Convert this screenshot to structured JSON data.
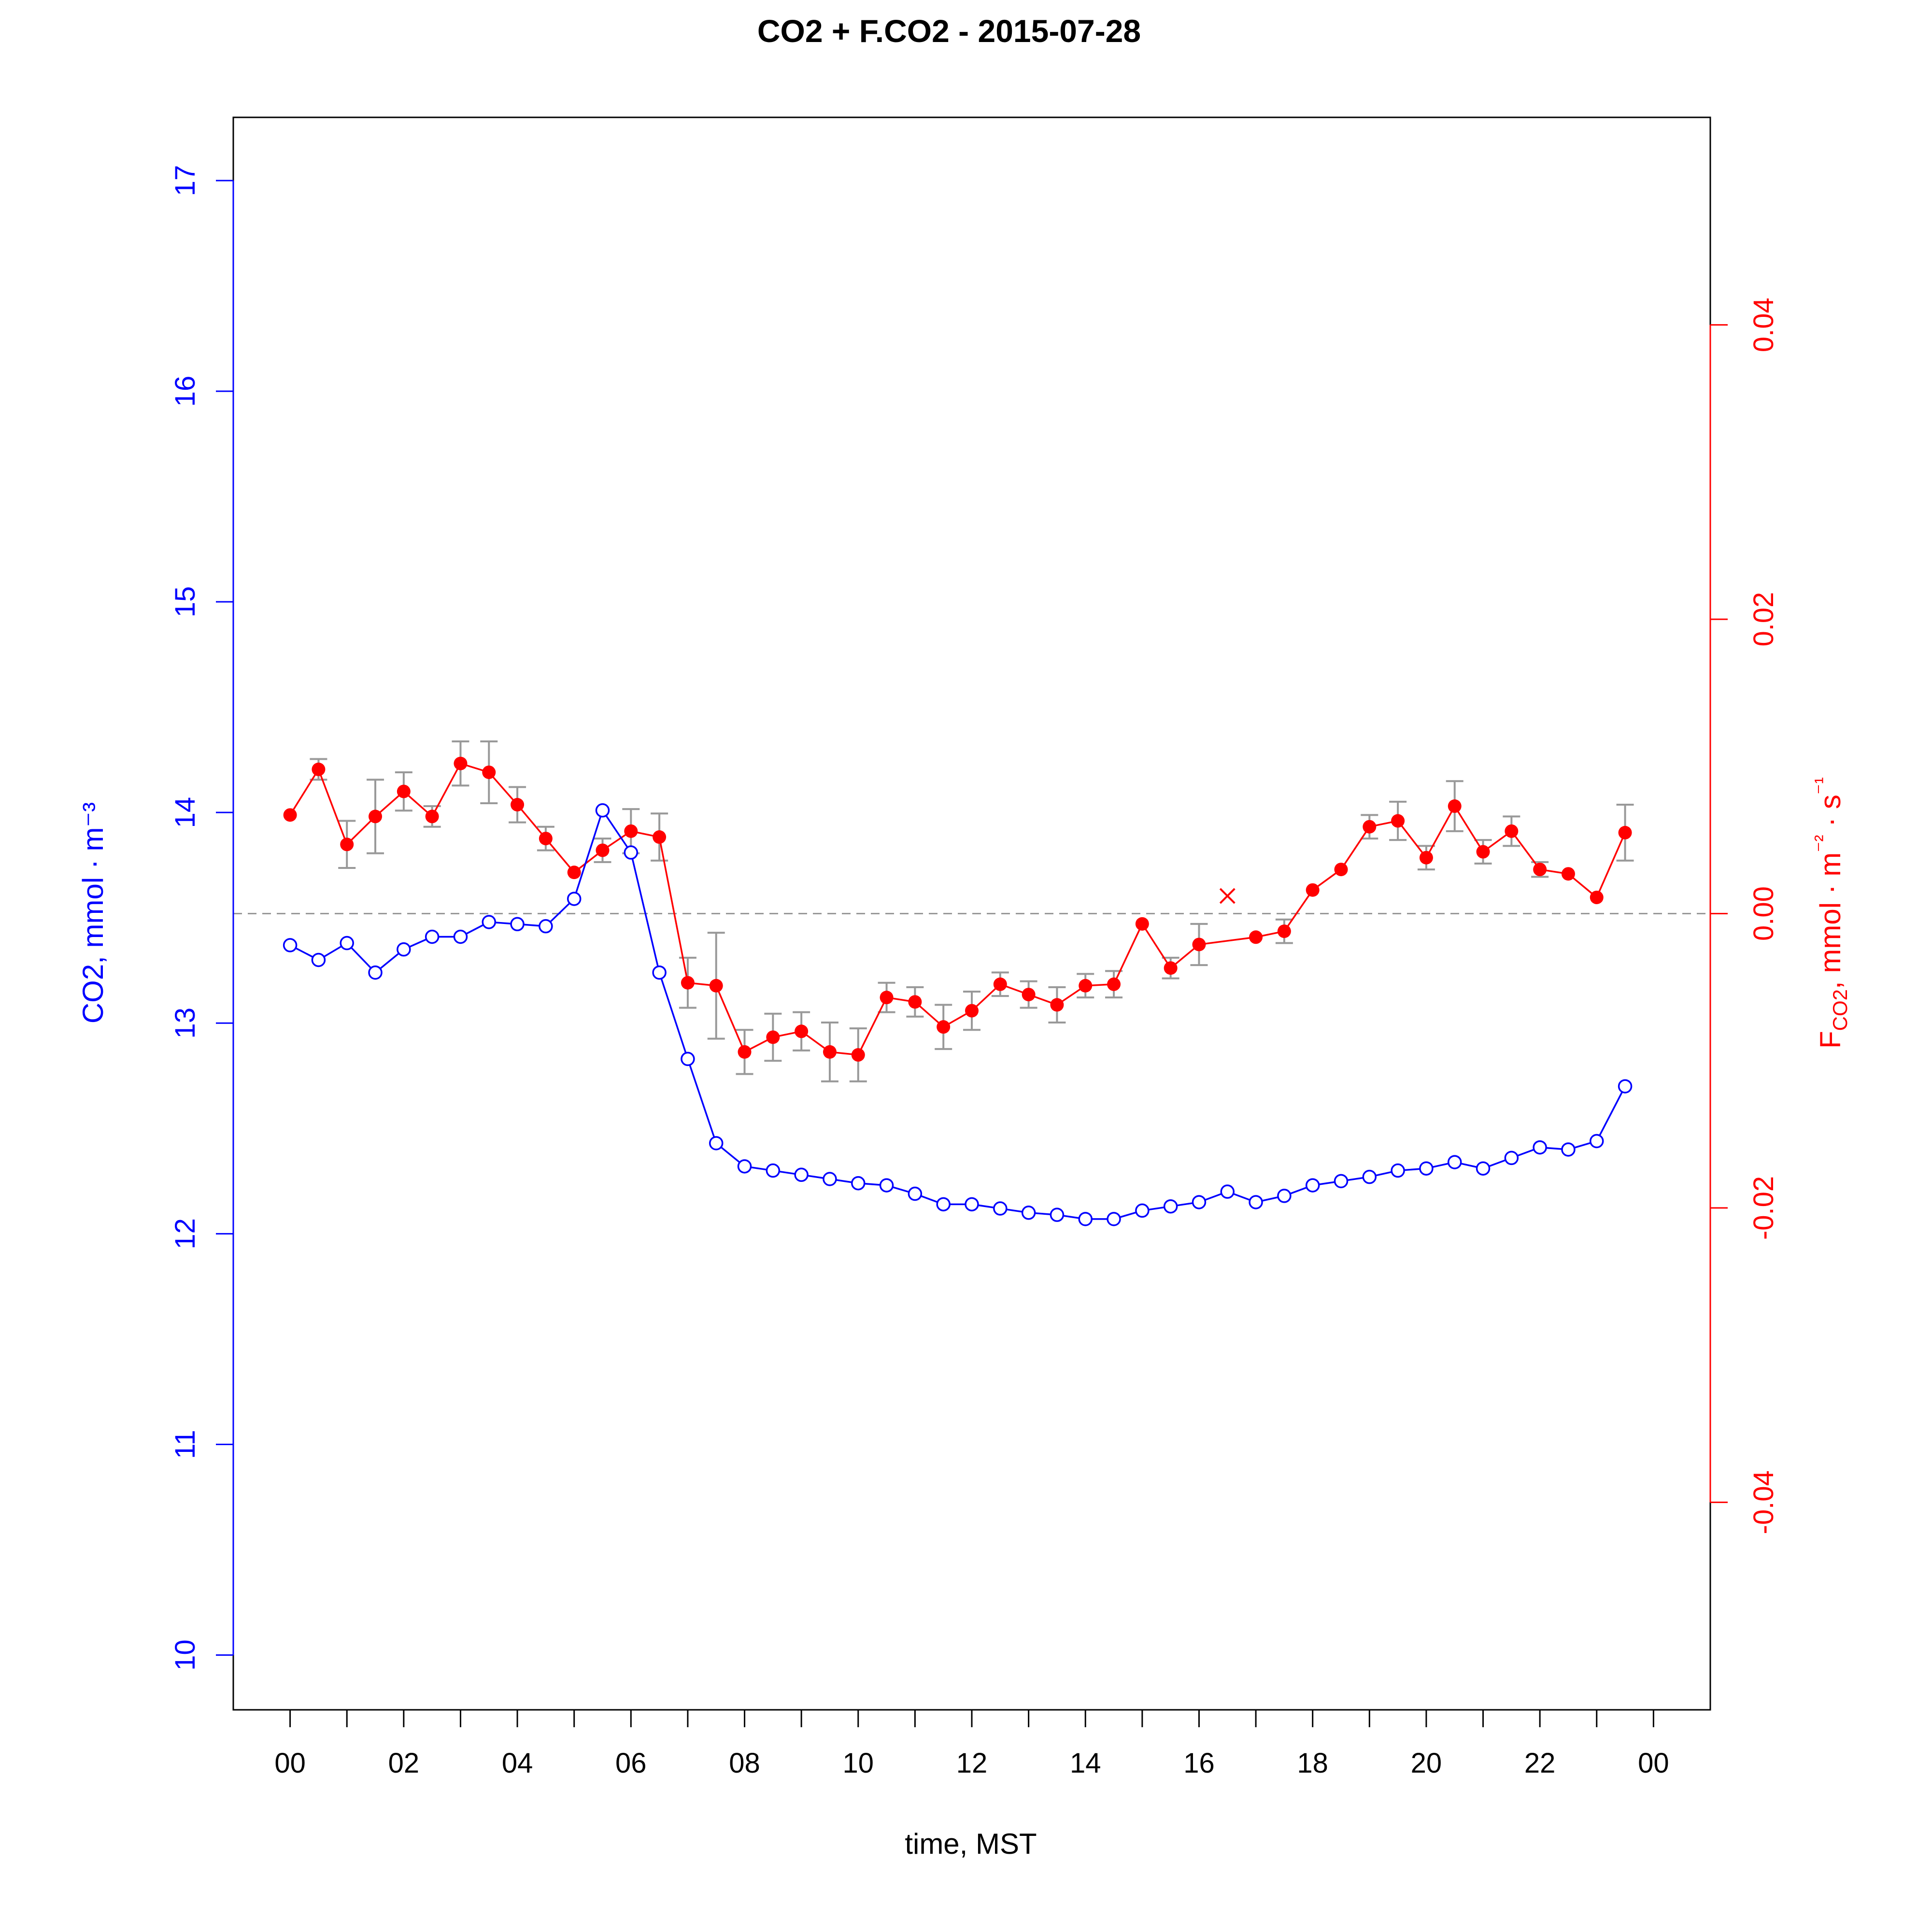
{
  "chart_data": {
    "type": "line",
    "title": "CO2 + F.CO2 -  2015-07-28",
    "xlabel": "time, MST",
    "ylabel_left": "CO2, mmol · m⁻³",
    "ylabel_right": "F_CO2, mmol · m⁻² · s⁻¹",
    "x_unit": "hour",
    "xlim": [
      -1,
      25
    ],
    "x_ticks": [
      0,
      1,
      2,
      3,
      4,
      5,
      6,
      7,
      8,
      9,
      10,
      11,
      12,
      13,
      14,
      15,
      16,
      17,
      18,
      19,
      20,
      21,
      22,
      23,
      24
    ],
    "x_tick_labels": [
      "00",
      "02",
      "04",
      "06",
      "08",
      "10",
      "12",
      "14",
      "16",
      "18",
      "20",
      "22",
      "00"
    ],
    "y_left_lim": [
      9.74,
      17.3
    ],
    "y_left_ticks": [
      "10",
      "11",
      "12",
      "13",
      "14",
      "15",
      "16",
      "17"
    ],
    "y_right_lim": [
      -0.0541,
      0.0541
    ],
    "y_right_ticks": [
      "-0.04",
      "-0.02",
      "0.00",
      "0.02",
      "0.04"
    ],
    "zero_line": 0,
    "grid": false,
    "colors": {
      "co2": "#0000ff",
      "fco2": "#ff0000",
      "error_bars": "#999999",
      "zero_line": "#999999"
    },
    "series": [
      {
        "axis": "left",
        "marker": "open-circle",
        "x": [
          0,
          0.5,
          1,
          1.5,
          2,
          2.5,
          3,
          3.5,
          4,
          4.5,
          5,
          5.5,
          6,
          6.5,
          7,
          7.5,
          8,
          8.5,
          9,
          9.5,
          10,
          10.5,
          11,
          11.5,
          12,
          12.5,
          13,
          13.5,
          14,
          14.5,
          15,
          15.5,
          16,
          16.5,
          17,
          17.5,
          18,
          18.5,
          19,
          19.5,
          20,
          20.5,
          21,
          21.5,
          22,
          22.5,
          23,
          23.5
        ],
        "values": [
          13.37,
          13.3,
          13.38,
          13.24,
          13.35,
          13.41,
          13.41,
          13.48,
          13.47,
          13.46,
          13.59,
          14.01,
          13.81,
          13.24,
          12.83,
          12.43,
          12.32,
          12.3,
          12.28,
          12.26,
          12.24,
          12.23,
          12.19,
          12.14,
          12.14,
          12.12,
          12.1,
          12.09,
          12.07,
          12.07,
          12.11,
          12.13,
          12.15,
          12.2,
          12.15,
          12.18,
          12.23,
          12.25,
          12.27,
          12.3,
          12.31,
          12.34,
          12.31,
          12.36,
          12.41,
          12.4,
          12.44,
          12.7
        ]
      },
      {
        "axis": "right",
        "marker": "filled-circle",
        "x": [
          0,
          0.5,
          1,
          1.5,
          2,
          2.5,
          3,
          3.5,
          4,
          4.5,
          5,
          5.5,
          6,
          6.5,
          7,
          7.5,
          8,
          8.5,
          9,
          9.5,
          10,
          10.5,
          11,
          11.5,
          12,
          12.5,
          13,
          13.5,
          14,
          14.5,
          15,
          15.5,
          16,
          17,
          17.5,
          18,
          18.5,
          19,
          19.5,
          20,
          20.5,
          21,
          21.5,
          22,
          22.5,
          23,
          23.5
        ],
        "values": [
          0.0067,
          0.0098,
          0.0047,
          0.0066,
          0.0083,
          0.0066,
          0.0102,
          0.0096,
          0.0074,
          0.0051,
          0.0028,
          0.0043,
          0.0056,
          0.0052,
          -0.0047,
          -0.0049,
          -0.0094,
          -0.0084,
          -0.008,
          -0.0094,
          -0.0096,
          -0.0057,
          -0.006,
          -0.0077,
          -0.0066,
          -0.0048,
          -0.0055,
          -0.0062,
          -0.0049,
          -0.0048,
          -0.0007,
          -0.0037,
          -0.0021,
          -0.0016,
          -0.0012,
          0.0016,
          0.003,
          0.0059,
          0.0063,
          0.0038,
          0.0073,
          0.0042,
          0.0056,
          0.003,
          0.0027,
          0.0011,
          0.0055
        ],
        "error": [
          0,
          0.0007,
          0.0016,
          0.0025,
          0.0013,
          0.0007,
          0.0015,
          0.0021,
          0.0012,
          0.0008,
          0,
          0.0008,
          0.0015,
          0.0016,
          0.0017,
          0.0036,
          0.0015,
          0.0016,
          0.0013,
          0.002,
          0.0018,
          0.001,
          0.001,
          0.0015,
          0.0013,
          0.0008,
          0.0009,
          0.0012,
          0.0008,
          0.0009,
          0,
          0.0007,
          0.0014,
          0,
          0.0008,
          0,
          0,
          0.0008,
          0.0013,
          0.0008,
          0.0017,
          0.0008,
          0.001,
          0.0005,
          0,
          0,
          0.0019
        ]
      },
      {
        "axis": "right",
        "marker": "cross",
        "x": [
          16.5
        ],
        "values": [
          0.0012
        ]
      }
    ]
  }
}
